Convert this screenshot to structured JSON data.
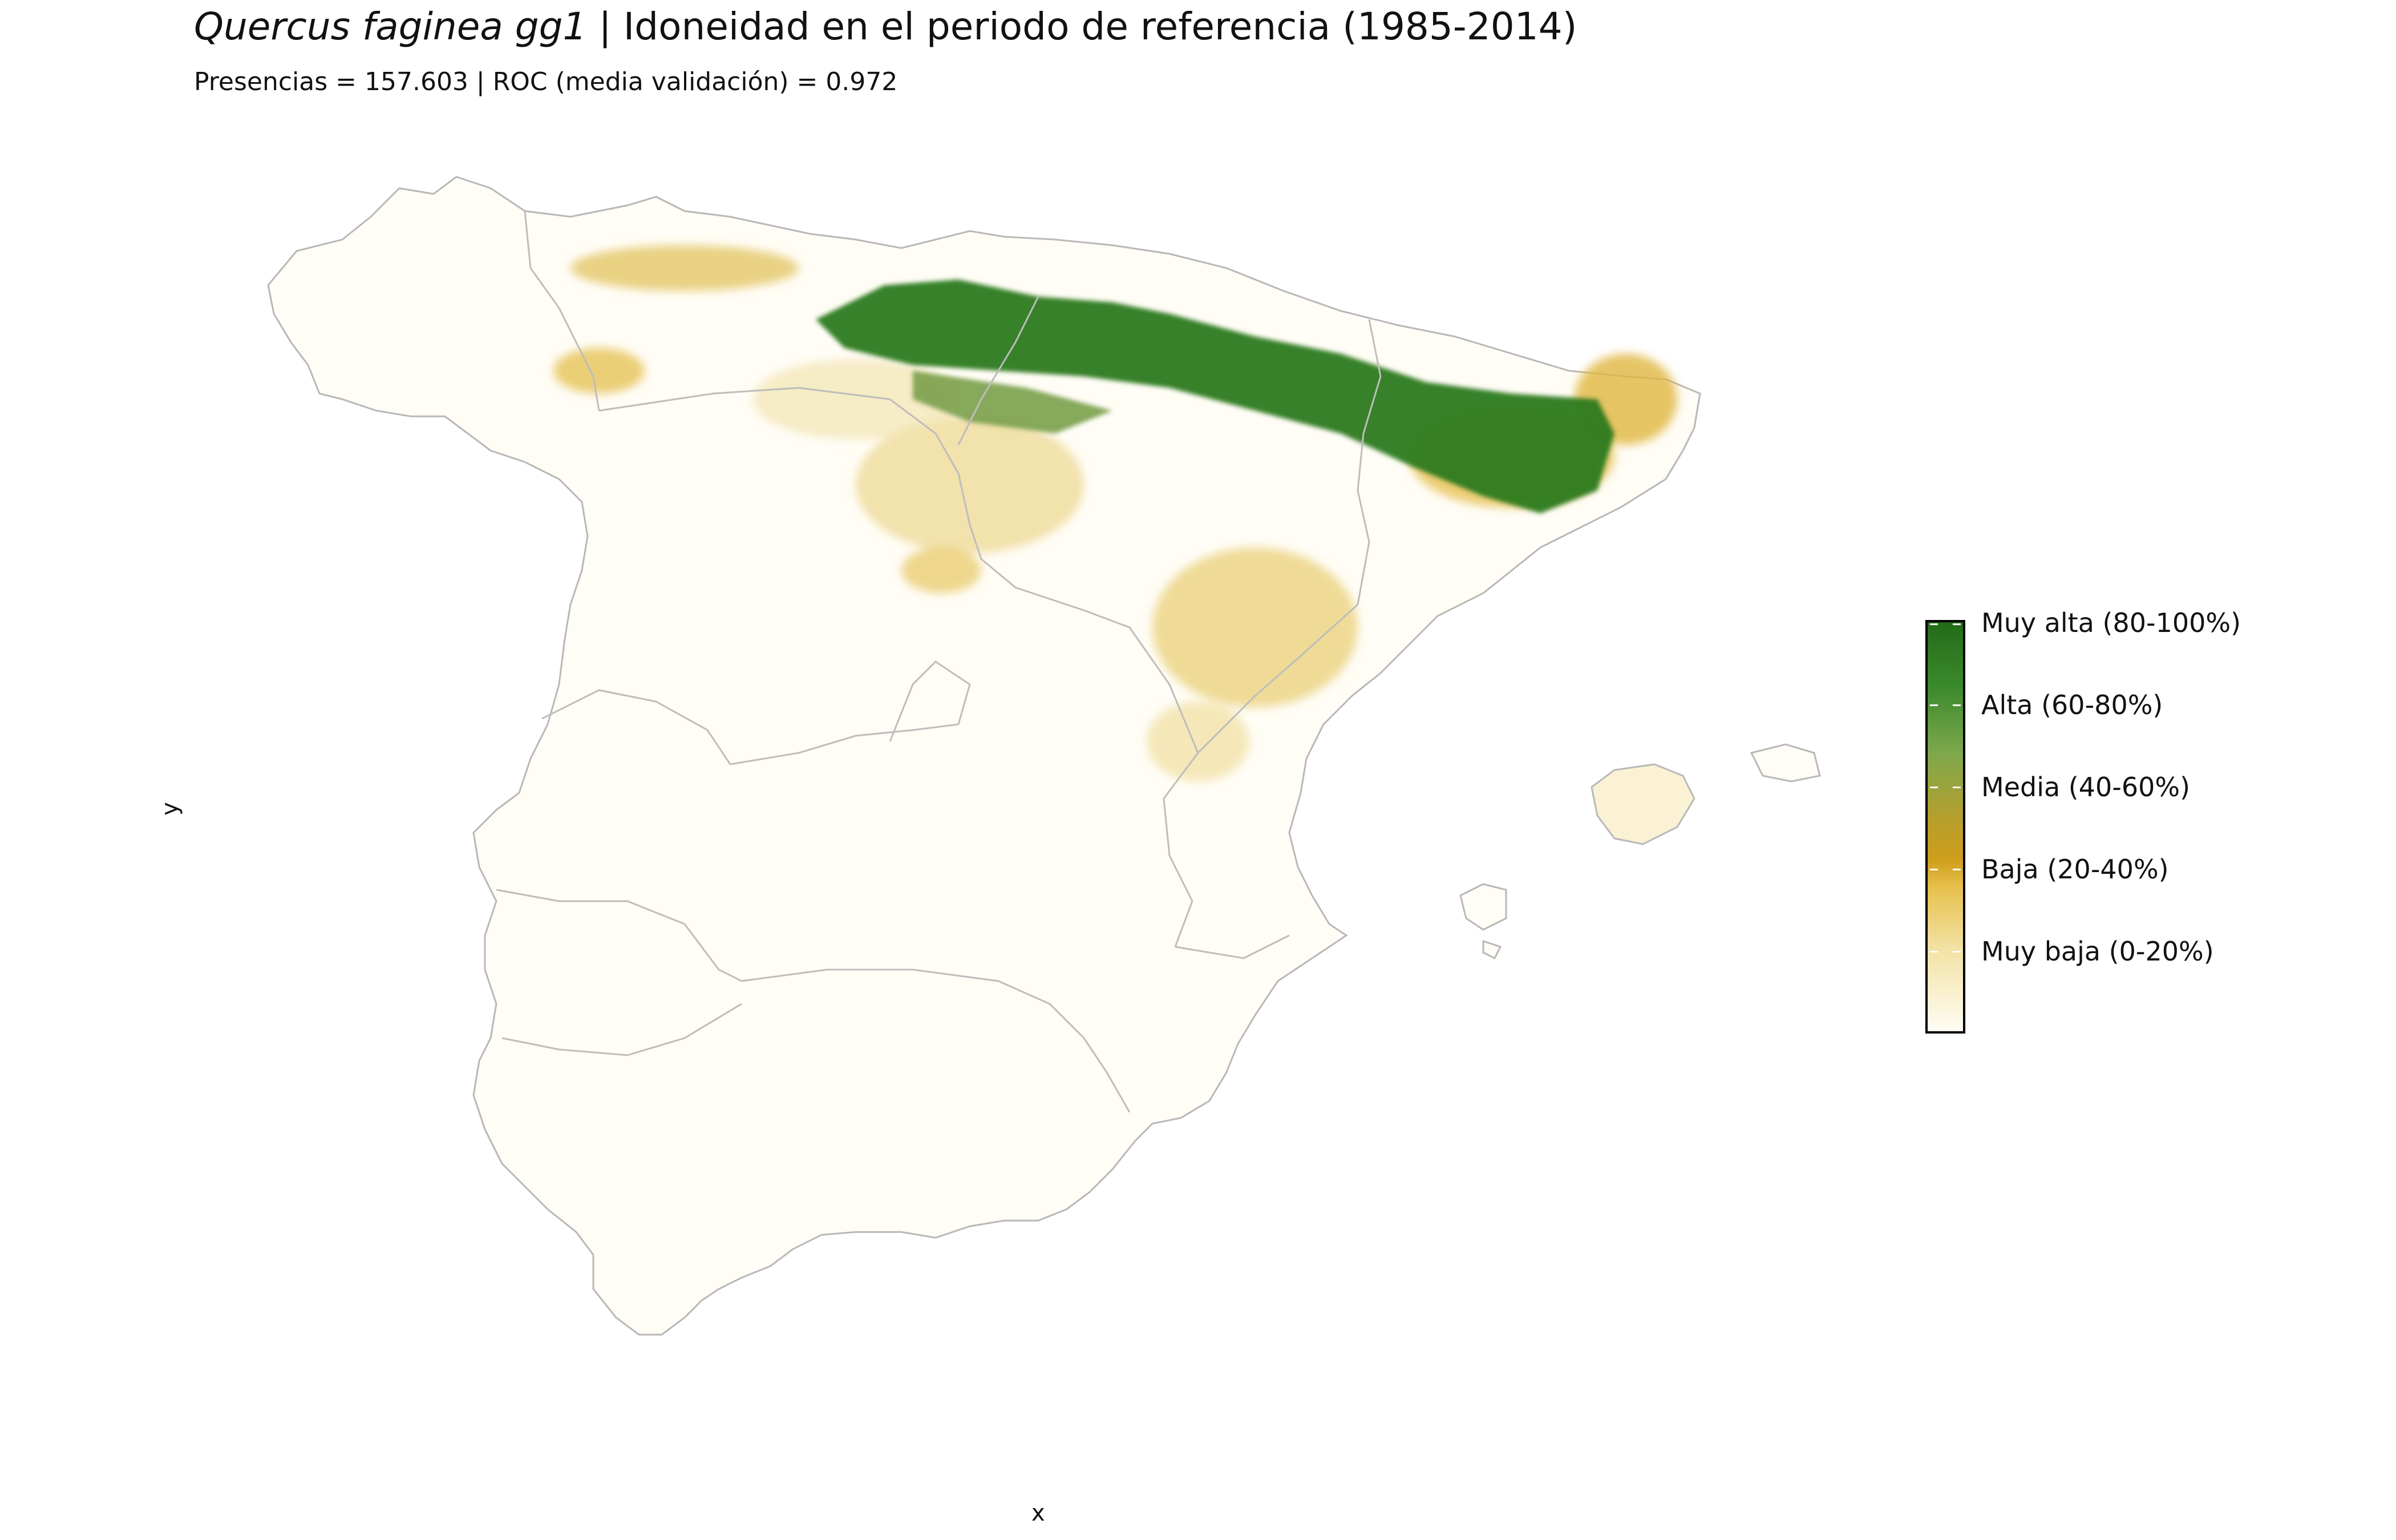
{
  "title": {
    "species": "Quercus faginea gg1",
    "rest": " | Idoneidad en el periodo de referencia (1985-2014)"
  },
  "subtitle": "Presencias = 157.603  |  ROC (media validación) = 0.972",
  "axes": {
    "x": "x",
    "y": "y"
  },
  "legend": {
    "items": [
      {
        "label": "Muy alta (80-100%)",
        "color": "#226b17"
      },
      {
        "label": "Alta (60-80%)",
        "color": "#6ea445"
      },
      {
        "label": "Media (40-60%)",
        "color": "#b69f2d"
      },
      {
        "label": "Baja (20-40%)",
        "color": "#d9a924"
      },
      {
        "label": "Muy baja (0-20%)",
        "color": "#f3e2a4"
      }
    ]
  },
  "map": {
    "region": "Iberian Peninsula (Spain) with Balearic Islands",
    "border_color": "#b8b8b8",
    "background_fill": "#fffdf6"
  }
}
